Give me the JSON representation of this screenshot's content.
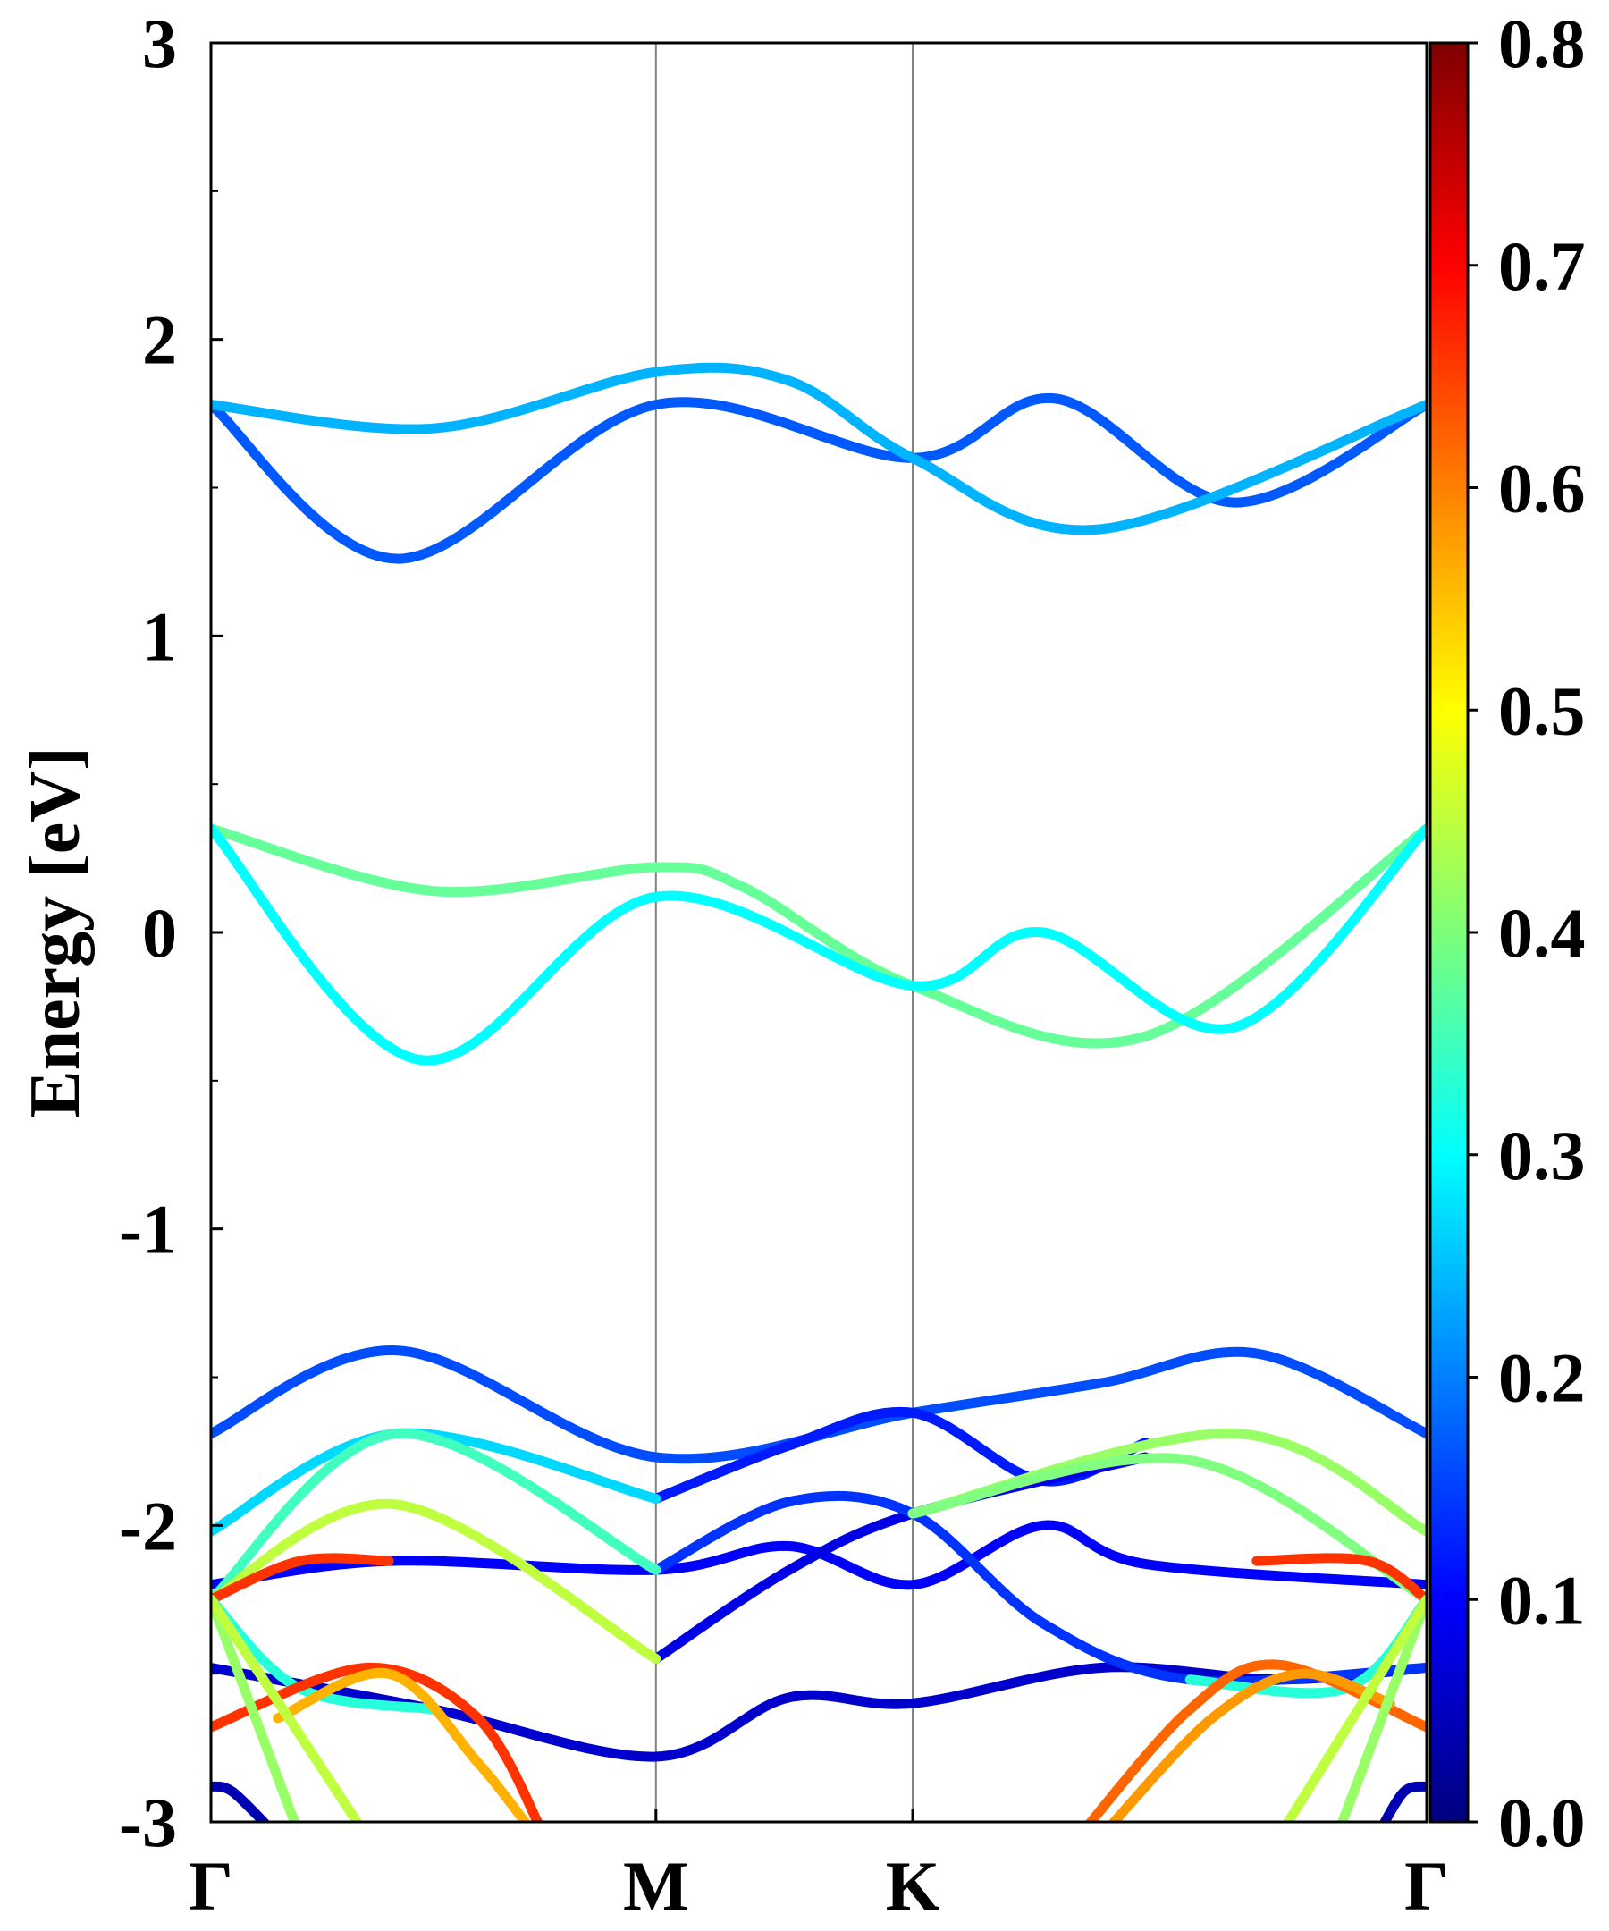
{
  "chart_data": {
    "type": "line",
    "ylabel": "Energy [eV]",
    "ylim": [
      -3,
      3
    ],
    "yticks": [
      "-3",
      "-2",
      "-1",
      "0",
      "1",
      "2",
      "3"
    ],
    "kpath": [
      {
        "label": "Γ",
        "pos": 0
      },
      {
        "label": "M",
        "pos": 1
      },
      {
        "label": "K",
        "pos": 1.577
      },
      {
        "label": "Γ",
        "pos": 2.732
      }
    ],
    "colorbar": {
      "colormap": "jet",
      "range": [
        0,
        0.8
      ],
      "ticks": [
        "0.0",
        "0.1",
        "0.2",
        "0.3",
        "0.4",
        "0.5",
        "0.6",
        "0.7",
        "0.8"
      ]
    },
    "bands": [
      {
        "weight": 0.17,
        "points": [
          [
            0,
            1.78
          ],
          [
            0.42,
            1.26
          ],
          [
            1,
            1.78
          ],
          [
            1.577,
            1.6
          ],
          [
            1.9,
            1.8
          ],
          [
            2.3,
            1.45
          ],
          [
            2.732,
            1.78
          ]
        ]
      },
      {
        "weight": 0.24,
        "points": [
          [
            0,
            1.78
          ],
          [
            0.5,
            1.7
          ],
          [
            1,
            1.89
          ],
          [
            1.3,
            1.86
          ],
          [
            1.577,
            1.6
          ],
          [
            2.0,
            1.36
          ],
          [
            2.732,
            1.78
          ]
        ]
      },
      {
        "weight": 0.38,
        "points": [
          [
            0,
            0.35
          ],
          [
            0.5,
            0.14
          ],
          [
            1,
            0.22
          ],
          [
            1.2,
            0.15
          ],
          [
            1.577,
            -0.18
          ],
          [
            2.1,
            -0.35
          ],
          [
            2.732,
            0.35
          ]
        ]
      },
      {
        "weight": 0.3,
        "points": [
          [
            0,
            0.35
          ],
          [
            0.47,
            -0.43
          ],
          [
            1,
            0.12
          ],
          [
            1.577,
            -0.18
          ],
          [
            1.87,
            0
          ],
          [
            2.3,
            -0.32
          ],
          [
            2.732,
            0.35
          ]
        ]
      },
      {
        "weight": 0.16,
        "points": [
          [
            0,
            -1.69
          ],
          [
            0.42,
            -1.41
          ],
          [
            1,
            -1.77
          ],
          [
            1.577,
            -1.62
          ],
          [
            2.0,
            -1.52
          ],
          [
            2.35,
            -1.42
          ],
          [
            2.732,
            -1.69
          ]
        ]
      },
      {
        "weight": 0.1,
        "points": [
          [
            0,
            -2.2
          ],
          [
            0.4,
            -2.12
          ],
          [
            1,
            -2.15
          ],
          [
            1.3,
            -2.07
          ],
          [
            1.577,
            -2.2
          ],
          [
            1.87,
            -2.0
          ],
          [
            2.1,
            -2.13
          ],
          [
            2.732,
            -2.2
          ]
        ]
      },
      {
        "weight": 0.06,
        "points": [
          [
            0,
            -2.48
          ],
          [
            0.5,
            -2.62
          ],
          [
            1,
            -2.78
          ],
          [
            1.3,
            -2.58
          ],
          [
            1.577,
            -2.6
          ],
          [
            2.0,
            -2.48
          ],
          [
            2.4,
            -2.52
          ],
          [
            2.732,
            -2.48
          ]
        ]
      },
      {
        "weight": 0.12,
        "points": [
          [
            1,
            -1.91
          ],
          [
            1.3,
            -1.73
          ],
          [
            1.577,
            -1.62
          ],
          [
            1.87,
            -1.85
          ],
          [
            2.1,
            -1.72
          ]
        ]
      },
      {
        "weight": 0.08,
        "points": [
          [
            1,
            -2.45
          ],
          [
            1.3,
            -2.15
          ],
          [
            1.577,
            -1.96
          ],
          [
            2.1,
            -1.77
          ]
        ]
      },
      {
        "weight": 0.14,
        "points": [
          [
            1,
            -2.15
          ],
          [
            1.3,
            -1.92
          ],
          [
            1.577,
            -1.96
          ],
          [
            1.87,
            -2.33
          ],
          [
            2.2,
            -2.52
          ],
          [
            2.732,
            -2.48
          ]
        ]
      },
      {
        "weight": 0.27,
        "points": [
          [
            0,
            -2.02
          ],
          [
            0.42,
            -1.69
          ],
          [
            1,
            -1.91
          ]
        ]
      },
      {
        "weight": 0.35,
        "points": [
          [
            0,
            -2.25
          ],
          [
            0.42,
            -1.69
          ],
          [
            1,
            -2.15
          ]
        ]
      },
      {
        "weight": 0.45,
        "points": [
          [
            0,
            -2.25
          ],
          [
            0.42,
            -1.93
          ],
          [
            1,
            -2.45
          ]
        ]
      },
      {
        "weight": 0.42,
        "points": [
          [
            1.577,
            -1.96
          ],
          [
            2.3,
            -1.69
          ],
          [
            2.732,
            -2.02
          ]
        ]
      },
      {
        "weight": 0.4,
        "points": [
          [
            1.577,
            -1.96
          ],
          [
            2.2,
            -1.78
          ],
          [
            2.732,
            -2.25
          ]
        ]
      },
      {
        "weight": 0.66,
        "points": [
          [
            0,
            -2.25
          ],
          [
            0.2,
            -2.12
          ],
          [
            0.4,
            -2.12
          ]
        ]
      },
      {
        "weight": 0.66,
        "points": [
          [
            2.35,
            -2.12
          ],
          [
            2.6,
            -2.12
          ],
          [
            2.732,
            -2.25
          ]
        ]
      },
      {
        "weight": 0.33,
        "points": [
          [
            0,
            -2.25
          ],
          [
            0.2,
            -2.55
          ],
          [
            0.5,
            -2.62
          ]
        ]
      },
      {
        "weight": 0.33,
        "points": [
          [
            2.2,
            -2.52
          ],
          [
            2.55,
            -2.55
          ],
          [
            2.732,
            -2.25
          ]
        ]
      },
      {
        "weight": 0.66,
        "points": [
          [
            0,
            -2.68
          ],
          [
            0.35,
            -2.48
          ],
          [
            0.6,
            -2.65
          ],
          [
            0.75,
            -3.05
          ]
        ]
      },
      {
        "weight": 0.56,
        "points": [
          [
            0.15,
            -2.65
          ],
          [
            0.4,
            -2.5
          ],
          [
            0.6,
            -2.8
          ],
          [
            0.73,
            -3.05
          ]
        ]
      },
      {
        "weight": 0.62,
        "points": [
          [
            1.95,
            -3.05
          ],
          [
            2.2,
            -2.62
          ],
          [
            2.4,
            -2.47
          ],
          [
            2.732,
            -2.68
          ]
        ]
      },
      {
        "weight": 0.58,
        "points": [
          [
            2.0,
            -3.05
          ],
          [
            2.25,
            -2.65
          ],
          [
            2.45,
            -2.5
          ],
          [
            2.65,
            -2.6
          ]
        ]
      },
      {
        "weight": 0.42,
        "points": [
          [
            0,
            -2.25
          ],
          [
            0.2,
            -3.05
          ]
        ]
      },
      {
        "weight": 0.45,
        "points": [
          [
            0,
            -2.25
          ],
          [
            0.35,
            -3.05
          ]
        ]
      },
      {
        "weight": 0.42,
        "points": [
          [
            2.732,
            -2.25
          ],
          [
            2.53,
            -3.05
          ]
        ]
      },
      {
        "weight": 0.45,
        "points": [
          [
            2.732,
            -2.25
          ],
          [
            2.4,
            -3.05
          ]
        ]
      },
      {
        "weight": 0.04,
        "points": [
          [
            0,
            -2.88
          ],
          [
            0.05,
            -2.9
          ],
          [
            0.15,
            -3.05
          ]
        ]
      },
      {
        "weight": 0.04,
        "points": [
          [
            2.62,
            -3.05
          ],
          [
            2.68,
            -2.9
          ],
          [
            2.732,
            -2.88
          ]
        ]
      }
    ]
  }
}
